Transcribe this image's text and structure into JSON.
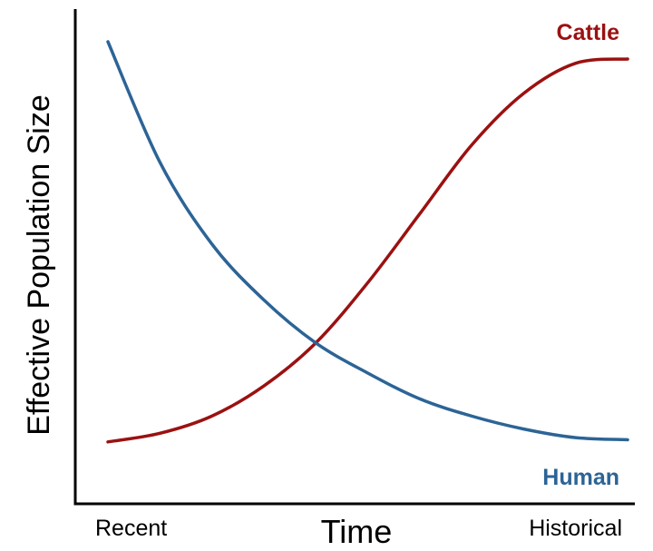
{
  "chart_data": {
    "type": "line",
    "title": "",
    "xlabel": "Time",
    "ylabel": "Effective Population Size",
    "x_tick_labels": [
      "Recent",
      "Historical"
    ],
    "xlim": [
      0,
      1
    ],
    "ylim": [
      0,
      1
    ],
    "grid": false,
    "legend": "inline labels at right",
    "series": [
      {
        "name": "Cattle",
        "color": "#9b1111",
        "x": [
          0.0,
          0.1,
          0.2,
          0.3,
          0.4,
          0.5,
          0.6,
          0.7,
          0.8,
          0.9,
          1.0
        ],
        "y": [
          0.07,
          0.09,
          0.13,
          0.2,
          0.3,
          0.44,
          0.6,
          0.76,
          0.88,
          0.95,
          0.96
        ]
      },
      {
        "name": "Human",
        "color": "#2c6496",
        "x": [
          0.0,
          0.1,
          0.2,
          0.3,
          0.4,
          0.5,
          0.6,
          0.7,
          0.8,
          0.9,
          1.0
        ],
        "y": [
          1.0,
          0.72,
          0.53,
          0.4,
          0.3,
          0.23,
          0.17,
          0.13,
          0.1,
          0.08,
          0.075
        ]
      }
    ]
  }
}
